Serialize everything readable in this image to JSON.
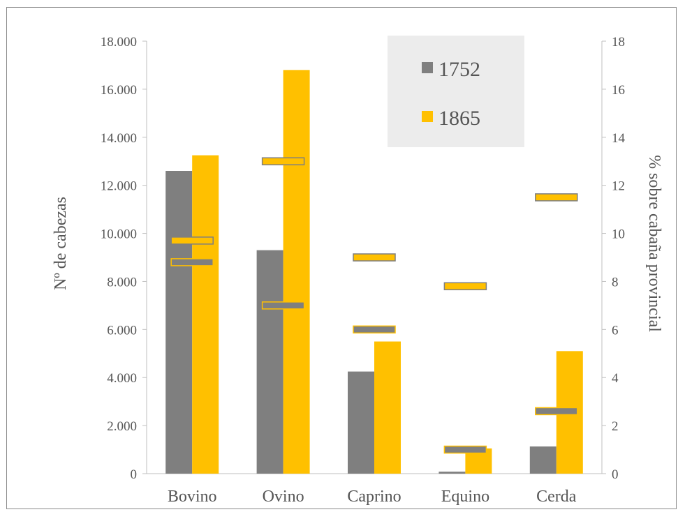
{
  "chart_data": {
    "type": "bar",
    "categories": [
      "Bovino",
      "Ovino",
      "Caprino",
      "Equino",
      "Cerda"
    ],
    "ylabel_left": "Nº de cabezas",
    "ylabel_right": "% sobre cabaña provincial",
    "ylim_left": [
      0,
      18000
    ],
    "ylim_right": [
      0,
      18
    ],
    "yticks_left": [
      "0",
      "2.000",
      "4.000",
      "6.000",
      "8.000",
      "10.000",
      "12.000",
      "14.000",
      "16.000",
      "18.000"
    ],
    "yticks_right": [
      "0",
      "2",
      "4",
      "6",
      "8",
      "10",
      "12",
      "14",
      "16",
      "18"
    ],
    "legend_position": "top-right",
    "series": [
      {
        "name": "1752",
        "axis": "left",
        "kind": "bar",
        "values": [
          12600,
          9300,
          4250,
          80,
          1130
        ]
      },
      {
        "name": "1865",
        "axis": "left",
        "kind": "bar",
        "values": [
          13250,
          16800,
          5500,
          1050,
          5100
        ]
      },
      {
        "name": "1752",
        "axis": "right",
        "kind": "marker",
        "values": [
          8.8,
          7.0,
          6.0,
          1.0,
          2.6
        ]
      },
      {
        "name": "1865",
        "axis": "right",
        "kind": "marker",
        "values": [
          9.7,
          13.0,
          9.0,
          7.8,
          11.5
        ]
      }
    ],
    "colors": {
      "s1752": "#7f7f7f",
      "s1865": "#ffc000"
    },
    "grid": false
  }
}
